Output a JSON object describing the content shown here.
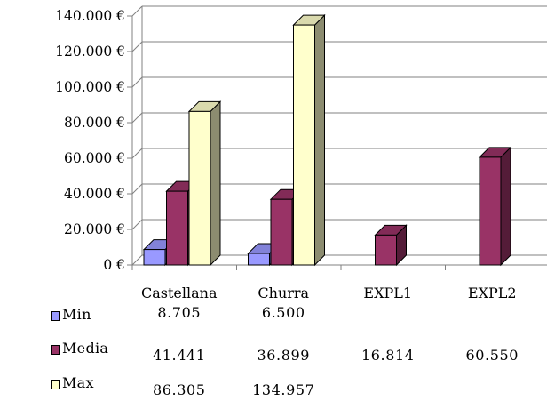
{
  "chart_data": {
    "type": "bar",
    "categories": [
      "Castellana",
      "Churra",
      "EXPL1",
      "EXPL2"
    ],
    "series": [
      {
        "name": "Min",
        "color": "#9999ff",
        "values": [
          8705,
          6500,
          null,
          null
        ],
        "labels": [
          "8.705",
          "6.500",
          "",
          ""
        ]
      },
      {
        "name": "Media",
        "color": "#993366",
        "values": [
          41441,
          36899,
          16814,
          60550
        ],
        "labels": [
          "41.441",
          "36.899",
          "16.814",
          "60.550"
        ]
      },
      {
        "name": "Max",
        "color": "#ffffcc",
        "values": [
          86305,
          134957,
          null,
          null
        ],
        "labels": [
          "86.305",
          "134.957",
          "",
          ""
        ]
      }
    ],
    "y_ticks": [
      "0 €",
      "20.000 €",
      "40.000 €",
      "60.000 €",
      "80.000 €",
      "100.000 €",
      "120.000 €",
      "140.000 €"
    ],
    "ylim": [
      0,
      140000
    ],
    "grid": true,
    "legend": "data-table-left",
    "style": "3d-clustered-bar"
  }
}
